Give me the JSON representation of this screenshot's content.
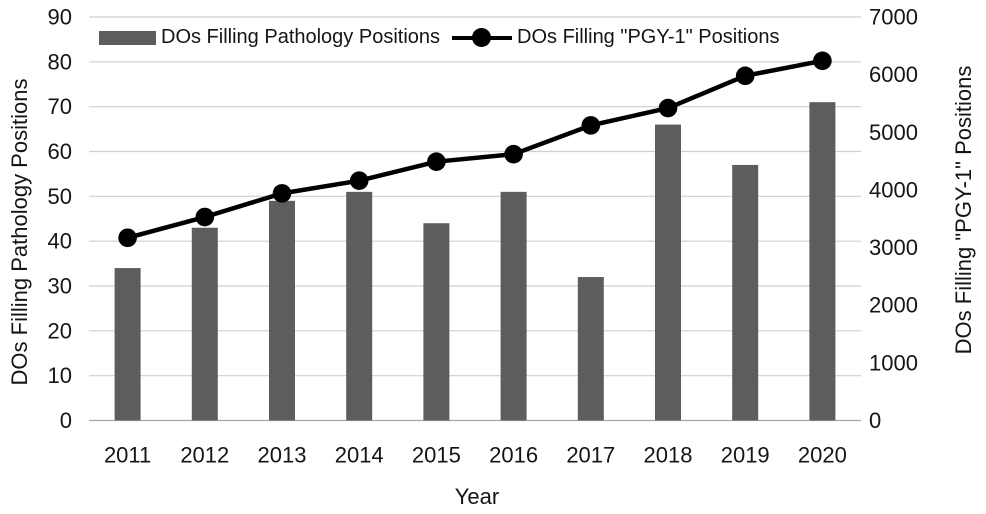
{
  "chart_data": {
    "type": "combo-bar-line",
    "title": "",
    "categories": [
      "2011",
      "2012",
      "2013",
      "2014",
      "2015",
      "2016",
      "2017",
      "2018",
      "2019",
      "2020"
    ],
    "series": [
      {
        "name": "DOs Filling Pathology Positions",
        "type": "bar",
        "axis": "left",
        "color": "#5d5d5d",
        "values": [
          34,
          43,
          49,
          51,
          44,
          51,
          32,
          66,
          57,
          71
        ]
      },
      {
        "name": "DOs Filling \"PGY-1\" Positions",
        "type": "line",
        "axis": "right",
        "color": "#000000",
        "marker": "circle",
        "values": [
          3170,
          3530,
          3940,
          4160,
          4490,
          4620,
          5120,
          5420,
          5980,
          6240
        ]
      }
    ],
    "xlabel": "Year",
    "ylabel_left": "DOs Filling Pathology Positions",
    "ylabel_right": "DOs Filling \"PGY-1\" Positions",
    "axis_left": {
      "min": 0,
      "max": 90,
      "step": 10
    },
    "axis_right": {
      "min": 0,
      "max": 7000,
      "step": 1000
    },
    "grid": true,
    "legend_position": "top",
    "colors": {
      "grid": "#cfcfcf",
      "axis_line": "#a9a9a9",
      "text": "#151515"
    }
  }
}
